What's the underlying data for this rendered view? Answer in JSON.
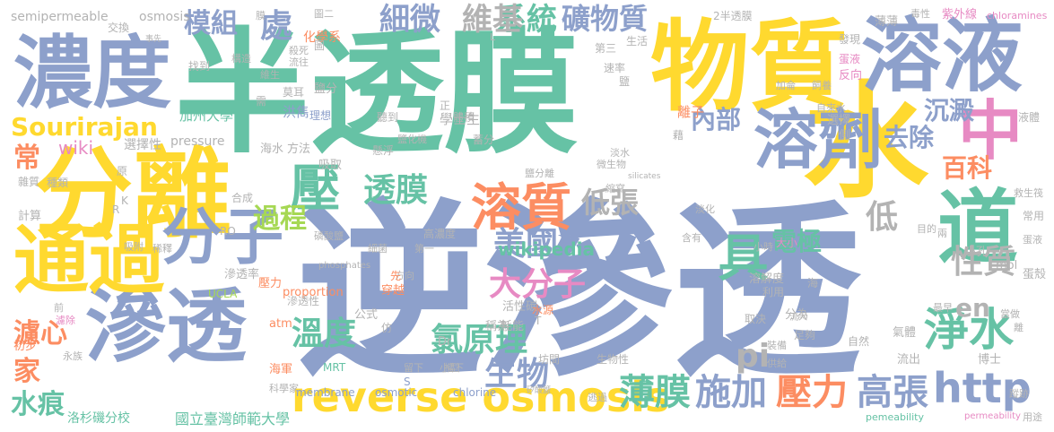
{
  "palette": {
    "teal": "#66c2a5",
    "yellow": "#ffd92f",
    "slate": "#8da0cb",
    "pink": "#e78ac3",
    "orange": "#fc8d62",
    "green": "#a6d854",
    "gray": "#b3b3b3",
    "tan": "#e5c494"
  },
  "words": [
    "半透膜",
    "逆滲透",
    "物質",
    "水",
    "分離",
    "濃度",
    "溶液",
    "滲透",
    "通過",
    "中",
    "道",
    "溶劑",
    "分子",
    "溶質",
    "壓",
    "reverse osmosis",
    "Sourirajan",
    "淨水",
    "壓力",
    "施加",
    "http",
    "高張",
    "薄膜",
    "美國",
    "大分子",
    "氯原理",
    "生物",
    "溫度",
    "過程",
    "透膜",
    "低張",
    "系統",
    "礦物質",
    "細微",
    "維基",
    "模組",
    "處",
    "內部",
    "去除",
    "沉澱",
    "百科",
    "電極",
    "低",
    "性質",
    "具",
    "pi",
    "en",
    "wikipedia",
    "wiki",
    "常",
    "濾心",
    "家",
    "水痕",
    "加州大學",
    "國立臺灣師範大學",
    "洛杉磯分校",
    "membrane",
    "osmotic",
    "chlorine",
    "semipermeable",
    "osmosis",
    "pressure",
    "化學系",
    "洪雋",
    "學士生",
    "選擇性",
    "方法",
    "吸取",
    "海水",
    "壓力",
    "proportion",
    "UCLA",
    "atm",
    "MRT",
    "公式",
    "穿越",
    "方向",
    "活性碳",
    "耗能",
    "稱為",
    "坊間",
    "生物性",
    "海軍",
    "科學家",
    "初步",
    "滲透率",
    "滲透性",
    "溶解度",
    "利用",
    "取決",
    "流入",
    "海",
    "最早",
    "分為",
    "氣體",
    "自然",
    "流出",
    "博士",
    "足夠",
    "裝備",
    "供給",
    "逃過",
    "離子",
    "選擇",
    "側",
    "淡水",
    "微生物",
    "縮寫",
    "淡化",
    "含有",
    "大小",
    "小時",
    "目的",
    "兩",
    "小孔",
    "mol",
    "蛋殼",
    "蛋液",
    "液體",
    "常用",
    "救生筏",
    "用途",
    "蹤跡",
    "永族",
    "當做",
    "離",
    "紫外線",
    "毒性",
    "chloramines",
    "薄薄",
    "發現",
    "蛋液",
    "反向",
    "飼養",
    "自來水",
    "鹽",
    "速率",
    "第三",
    "生活",
    "維生",
    "流往",
    "殺死",
    "構造",
    "交換",
    "找到",
    "吸附",
    "前",
    "計算",
    "雜質",
    "種類",
    "原",
    "phosphates",
    "silicates",
    "細菌",
    "第一",
    "高濃度",
    "懸浮",
    "蓄分",
    "鹽化機",
    "理想",
    "聽到",
    "體積",
    "正",
    "鹽分",
    "莫耳",
    "需",
    "圖",
    "圖二",
    "膜",
    "2半透膜",
    "合成",
    "事先",
    "磷酸鹽",
    "Dr",
    "S",
    "L",
    "留下",
    "小型",
    "矽酸鹽",
    "pemeability",
    "permeability",
    "T",
    "K",
    "RO",
    "R",
    "濾除",
    "稀釋",
    "先",
    "仿",
    "水源",
    "擋下",
    "鹽分離",
    "加侖",
    "藉"
  ]
}
